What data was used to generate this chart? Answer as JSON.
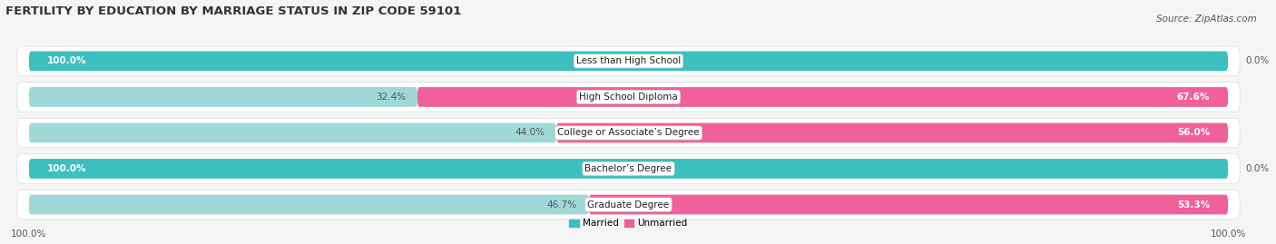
{
  "title": "FERTILITY BY EDUCATION BY MARRIAGE STATUS IN ZIP CODE 59101",
  "source": "Source: ZipAtlas.com",
  "categories": [
    "Less than High School",
    "High School Diploma",
    "College or Associate’s Degree",
    "Bachelor’s Degree",
    "Graduate Degree"
  ],
  "married": [
    100.0,
    32.4,
    44.0,
    100.0,
    46.7
  ],
  "unmarried": [
    0.0,
    67.6,
    56.0,
    0.0,
    53.3
  ],
  "married_color_full": "#3dbfbf",
  "married_color_light": "#a0d8d8",
  "unmarried_color_full": "#f0609a",
  "unmarried_color_light": "#f0b0cb",
  "bg_color": "#f5f5f5",
  "row_bg_color": "#e8e8e8",
  "bar_height": 0.55,
  "figsize": [
    14.06,
    2.69
  ],
  "dpi": 100,
  "title_fontsize": 9.5,
  "label_fontsize": 7.5,
  "category_fontsize": 7.5,
  "legend_fontsize": 7.5,
  "source_fontsize": 7.5
}
